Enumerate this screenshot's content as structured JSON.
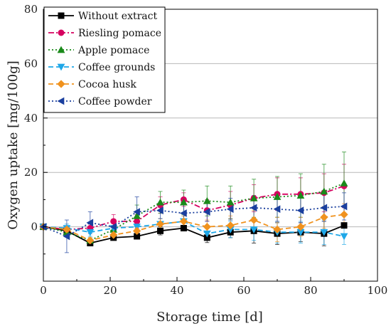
{
  "chart_data": {
    "type": "line",
    "xlabel": "Storage time [d]",
    "ylabel": "Oxygen uptake [mg/100g]",
    "xlim": [
      0,
      100
    ],
    "ylim": [
      -20,
      80
    ],
    "xticks": [
      0,
      20,
      40,
      60,
      80,
      100
    ],
    "yticks": [
      0,
      20,
      40,
      60,
      80
    ],
    "ytick_labels": [
      "0",
      "20",
      "40",
      "60",
      "80"
    ],
    "grid": "horizontal",
    "legend_position": "top-left",
    "series": [
      {
        "name": "Without extract",
        "color": "#000000",
        "marker": "square",
        "dash": "solid",
        "x": [
          0,
          7,
          14,
          21,
          28,
          35,
          42,
          49,
          56,
          63,
          70,
          77,
          84,
          90
        ],
        "y": [
          0,
          -1.5,
          -6,
          -4,
          -3.5,
          -1.5,
          -0.5,
          -4,
          -2,
          -1.5,
          -2.5,
          -2,
          -2.5,
          0.5
        ],
        "err": [
          0.3,
          0.8,
          1.0,
          0.8,
          1.0,
          1.5,
          1.0,
          1.8,
          2.0,
          4.5,
          4.0,
          3.5,
          4.5,
          0.8
        ]
      },
      {
        "name": "Riesling pomace",
        "color": "#d6005f",
        "marker": "circle",
        "dash": "dashdot",
        "x": [
          0,
          7,
          14,
          21,
          28,
          35,
          42,
          49,
          56,
          63,
          70,
          77,
          84,
          90
        ],
        "y": [
          0,
          -1,
          -0.5,
          2,
          2,
          8,
          10,
          6,
          8,
          10.5,
          12,
          12,
          12.5,
          15
        ],
        "err": [
          0.3,
          1.0,
          1.5,
          2.5,
          2.5,
          3.0,
          2.5,
          4.0,
          5.0,
          5.0,
          6.0,
          6.0,
          7.0,
          8.0
        ]
      },
      {
        "name": "Apple pomace",
        "color": "#1a8a1a",
        "marker": "triangle-up",
        "dash": "dotted",
        "x": [
          0,
          7,
          14,
          21,
          28,
          35,
          42,
          49,
          56,
          63,
          70,
          77,
          84,
          90
        ],
        "y": [
          0,
          -2,
          -5,
          -1,
          4,
          9,
          9,
          9.5,
          9,
          10.5,
          11,
          11.5,
          13,
          16
        ],
        "err": [
          0.3,
          1.0,
          1.0,
          3.0,
          4.0,
          4.0,
          4.5,
          5.5,
          6.0,
          7.0,
          7.5,
          8.0,
          10.0,
          11.5
        ]
      },
      {
        "name": "Coffee grounds",
        "color": "#1ea7e8",
        "marker": "triangle-down",
        "dash": "dashed",
        "x": [
          0,
          7,
          14,
          21,
          28,
          35,
          42,
          49,
          56,
          63,
          70,
          77,
          84,
          90
        ],
        "y": [
          0,
          -0.5,
          -2,
          -0.5,
          0,
          1,
          2,
          -2.5,
          -1,
          -1,
          -2,
          -2,
          -2,
          -3.5
        ],
        "err": [
          0.3,
          1.5,
          1.5,
          2.0,
          2.0,
          2.0,
          2.0,
          2.5,
          3.0,
          4.0,
          4.0,
          4.0,
          4.5,
          3.0
        ]
      },
      {
        "name": "Cocoa husk",
        "color": "#f0921e",
        "marker": "diamond",
        "dash": "dashed",
        "x": [
          0,
          7,
          14,
          21,
          28,
          35,
          42,
          49,
          56,
          63,
          70,
          77,
          84,
          90
        ],
        "y": [
          0,
          -1,
          -5,
          -3,
          -1.5,
          1,
          2,
          0,
          0.5,
          2.5,
          -1,
          0,
          3.5,
          4.5
        ],
        "err": [
          0.3,
          1.0,
          1.0,
          1.5,
          2.0,
          2.0,
          2.0,
          2.5,
          3.5,
          3.5,
          4.5,
          3.5,
          4.0,
          4.0
        ]
      },
      {
        "name": "Coffee powder",
        "color": "#1a3f9e",
        "marker": "triangle-left",
        "dash": "dotted",
        "x": [
          0,
          7,
          14,
          21,
          28,
          35,
          42,
          49,
          56,
          63,
          70,
          77,
          84,
          90
        ],
        "y": [
          0,
          -3.5,
          1.5,
          0,
          5.5,
          6,
          5,
          5.5,
          6.5,
          7,
          6.5,
          6,
          7,
          7.5
        ],
        "err": [
          0.3,
          6.0,
          4.0,
          2.0,
          5.5,
          3.0,
          3.0,
          3.5,
          4.0,
          4.5,
          4.5,
          4.5,
          5.0,
          5.0
        ]
      }
    ]
  }
}
